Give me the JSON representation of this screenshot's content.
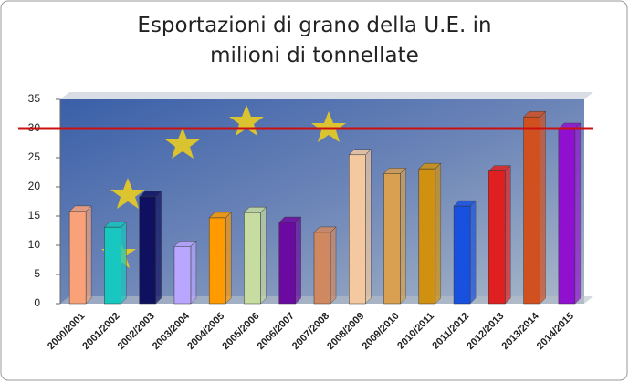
{
  "chart_data": {
    "type": "bar",
    "title": "Esportazioni di grano della U.E. in milioni di tonnellate",
    "categories": [
      "2000/2001",
      "2001/2002",
      "2002/2003",
      "2003/2004",
      "2004/2005",
      "2005/2006",
      "2006/2007",
      "2007/2008",
      "2008/2009",
      "2009/2010",
      "2010/2011",
      "2011/2012",
      "2012/2013",
      "2013/2014",
      "2014/2015"
    ],
    "values": [
      15.8,
      13.1,
      18.3,
      9.8,
      14.7,
      15.6,
      13.9,
      12.2,
      25.5,
      22.3,
      23.1,
      16.7,
      22.7,
      32.0,
      30.0
    ],
    "colors": [
      "#f9a27a",
      "#17c7c0",
      "#101060",
      "#b9a7ff",
      "#ff9a00",
      "#c7dca0",
      "#6a0aa0",
      "#d08860",
      "#f5c9a0",
      "#d8a050",
      "#d09010",
      "#1850e0",
      "#e02020",
      "#d05020",
      "#9010d0"
    ],
    "ylim": [
      0,
      35
    ],
    "yticks": [
      0,
      5,
      10,
      15,
      20,
      25,
      30,
      35
    ],
    "grid": false,
    "reference_line": {
      "value": 30,
      "color": "#cc1010"
    }
  }
}
